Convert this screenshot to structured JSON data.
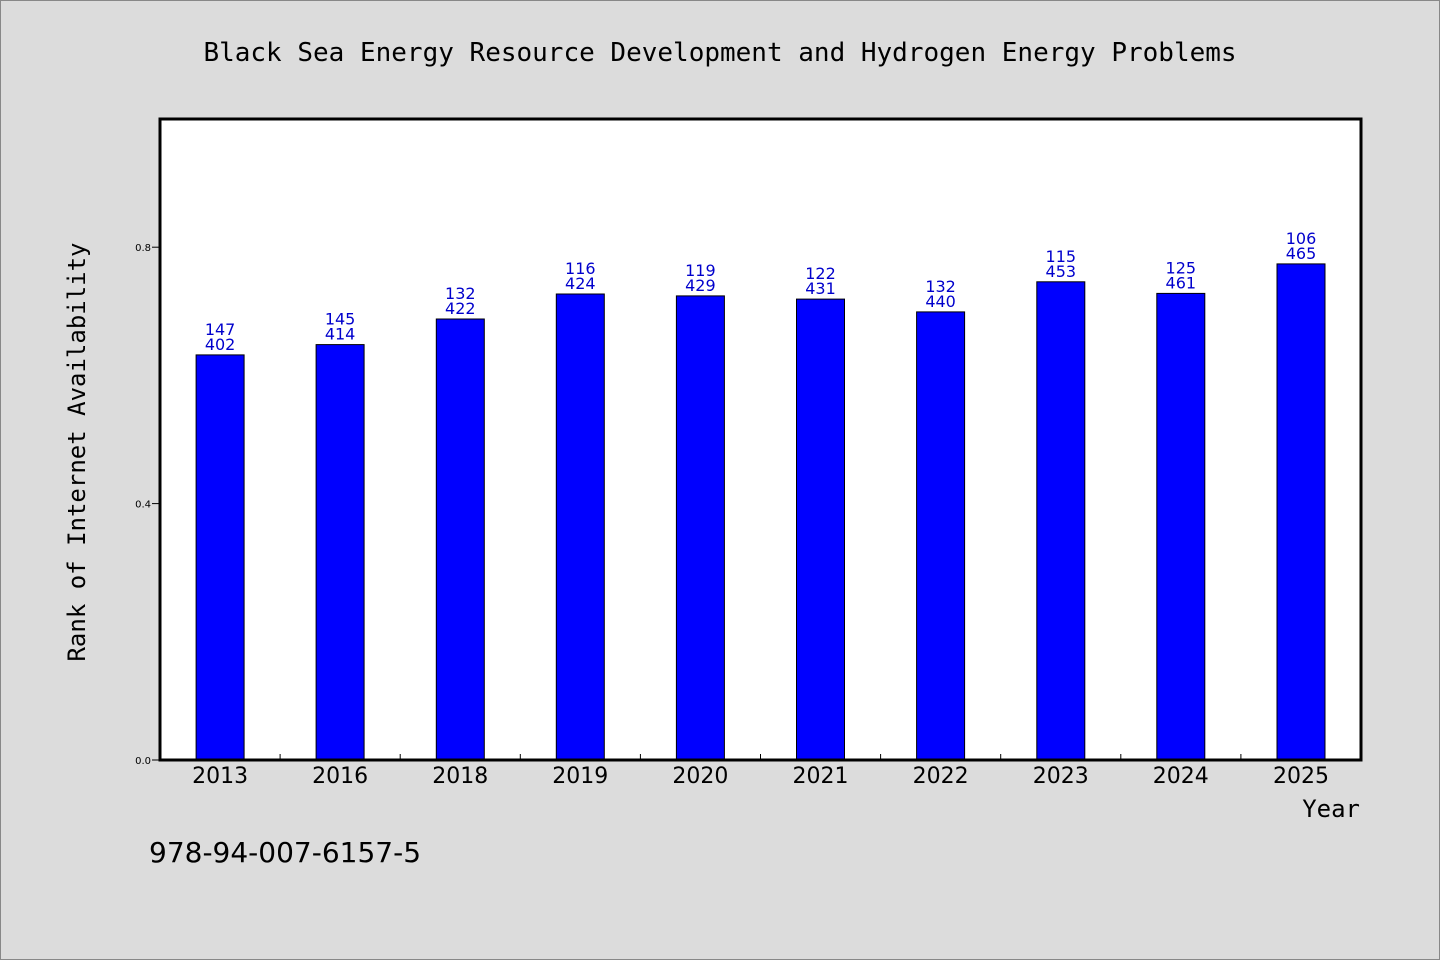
{
  "chart_data": {
    "type": "bar",
    "title": "Black Sea Energy Resource Development and Hydrogen Energy Problems",
    "xlabel": "Year",
    "ylabel": "Rank of Internet Availability",
    "categories": [
      "2013",
      "2016",
      "2018",
      "2019",
      "2020",
      "2021",
      "2022",
      "2023",
      "2024",
      "2025"
    ],
    "values": [
      0.632,
      0.648,
      0.688,
      0.727,
      0.724,
      0.719,
      0.699,
      0.746,
      0.728,
      0.774
    ],
    "label_top": [
      "147",
      "145",
      "132",
      "116",
      "119",
      "122",
      "132",
      "115",
      "125",
      "106"
    ],
    "label_bottom": [
      "402",
      "414",
      "422",
      "424",
      "429",
      "431",
      "440",
      "453",
      "461",
      "465"
    ],
    "yticks": [
      "0.0",
      "0.4",
      "0.8"
    ],
    "ytick_values": [
      0.0,
      0.4,
      0.8
    ],
    "ylim": [
      0,
      1.0
    ],
    "grid": false,
    "bar_color": "#0000ff",
    "label_color": "#0000cc",
    "background_color": "#dcdcdc",
    "plot_background": "#ffffff"
  },
  "footer": {
    "isbn": "978-94-007-6157-5"
  }
}
